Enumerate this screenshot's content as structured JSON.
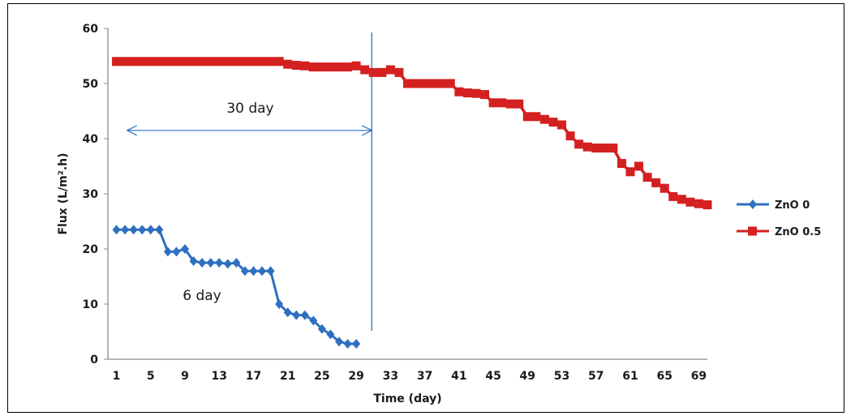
{
  "chart_data": {
    "type": "line",
    "title": "",
    "xlabel": "Time (day)",
    "ylabel": "Flux (L/m².h)",
    "xlim": [
      0,
      70
    ],
    "ylim": [
      0,
      60
    ],
    "x_ticks": [
      1,
      5,
      9,
      13,
      17,
      21,
      25,
      29,
      33,
      37,
      41,
      45,
      49,
      53,
      57,
      61,
      65,
      69
    ],
    "y_ticks": [
      0,
      10,
      20,
      30,
      40,
      50,
      60
    ],
    "grid": false,
    "legend_position": "right",
    "series": [
      {
        "name": "ZnO 0",
        "color": "#2e6fc0",
        "marker": "diamond",
        "x": [
          1,
          2,
          3,
          4,
          5,
          6,
          7,
          8,
          9,
          10,
          11,
          12,
          13,
          14,
          15,
          16,
          17,
          18,
          19,
          20,
          21,
          22,
          23,
          24,
          25,
          26,
          27,
          28,
          29
        ],
        "y": [
          23.5,
          23.5,
          23.5,
          23.5,
          23.5,
          23.5,
          19.5,
          19.5,
          20,
          17.8,
          17.5,
          17.5,
          17.5,
          17.3,
          17.5,
          16,
          16,
          16,
          16,
          10,
          8.5,
          8,
          8,
          7,
          5.5,
          4.5,
          3.2,
          2.8,
          2.8
        ]
      },
      {
        "name": "ZnO 0.5",
        "color": "#d42020",
        "marker": "square",
        "x": [
          1,
          2,
          3,
          4,
          5,
          6,
          7,
          8,
          9,
          10,
          11,
          12,
          13,
          14,
          15,
          16,
          17,
          18,
          19,
          20,
          21,
          22,
          23,
          24,
          25,
          26,
          27,
          28,
          29,
          30,
          31,
          32,
          33,
          34,
          35,
          36,
          37,
          38,
          39,
          40,
          41,
          42,
          43,
          44,
          45,
          46,
          47,
          48,
          49,
          50,
          51,
          52,
          53,
          54,
          55,
          56,
          57,
          58,
          59,
          60,
          61,
          62,
          63,
          64,
          65,
          66,
          67,
          68,
          69,
          70
        ],
        "y": [
          54,
          54,
          54,
          54,
          54,
          54,
          54,
          54,
          54,
          54,
          54,
          54,
          54,
          54,
          54,
          54,
          54,
          54,
          54,
          54,
          53.5,
          53.3,
          53.2,
          53,
          53,
          53,
          53,
          53,
          53.2,
          52.5,
          52,
          52,
          52.5,
          52,
          50,
          50,
          50,
          50,
          50,
          50,
          48.5,
          48.3,
          48.2,
          48,
          46.5,
          46.5,
          46.3,
          46.3,
          44,
          44,
          43.5,
          43,
          42.5,
          40.5,
          39,
          38.5,
          38.3,
          38.3,
          38.3,
          35.5,
          34,
          35,
          33,
          32,
          31,
          29.5,
          29,
          28.5,
          28.2,
          28
        ]
      }
    ],
    "annotations": {
      "arrow_label": "30 day",
      "arrow_from_x": 3,
      "arrow_to_x": 31,
      "arrow_y": 41.5,
      "vline_x": 31,
      "label_6day": "6 day"
    }
  }
}
